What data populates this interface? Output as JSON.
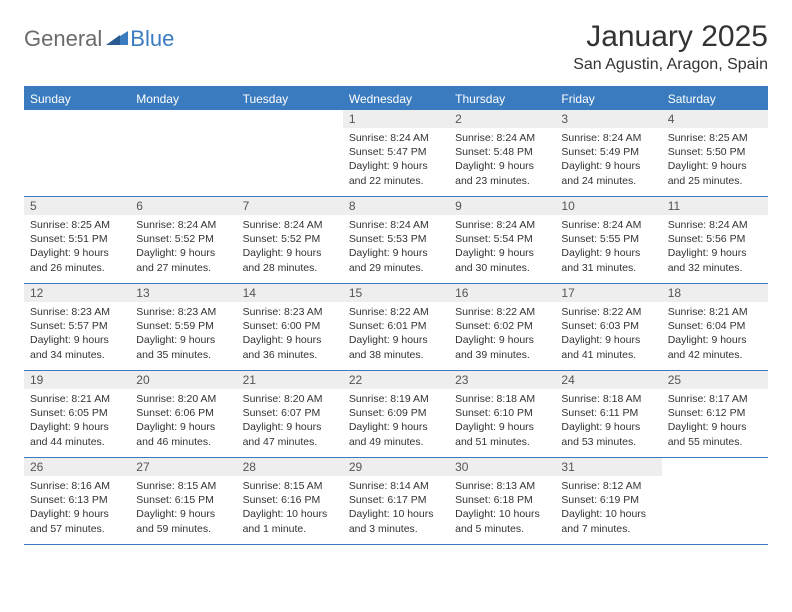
{
  "logo": {
    "general": "General",
    "blue": "Blue"
  },
  "title": "January 2025",
  "location": "San Agustin, Aragon, Spain",
  "colors": {
    "accent": "#3a7bbf",
    "header_text": "#ffffff",
    "day_number_bg": "#eeeeee",
    "body_text": "#333333",
    "logo_gray": "#6b6b6b"
  },
  "day_headers": [
    "Sunday",
    "Monday",
    "Tuesday",
    "Wednesday",
    "Thursday",
    "Friday",
    "Saturday"
  ],
  "weeks": [
    [
      {
        "empty": true
      },
      {
        "empty": true
      },
      {
        "empty": true
      },
      {
        "num": "1",
        "sunrise": "8:24 AM",
        "sunset": "5:47 PM",
        "daylight": "9 hours and 22 minutes."
      },
      {
        "num": "2",
        "sunrise": "8:24 AM",
        "sunset": "5:48 PM",
        "daylight": "9 hours and 23 minutes."
      },
      {
        "num": "3",
        "sunrise": "8:24 AM",
        "sunset": "5:49 PM",
        "daylight": "9 hours and 24 minutes."
      },
      {
        "num": "4",
        "sunrise": "8:25 AM",
        "sunset": "5:50 PM",
        "daylight": "9 hours and 25 minutes."
      }
    ],
    [
      {
        "num": "5",
        "sunrise": "8:25 AM",
        "sunset": "5:51 PM",
        "daylight": "9 hours and 26 minutes."
      },
      {
        "num": "6",
        "sunrise": "8:24 AM",
        "sunset": "5:52 PM",
        "daylight": "9 hours and 27 minutes."
      },
      {
        "num": "7",
        "sunrise": "8:24 AM",
        "sunset": "5:52 PM",
        "daylight": "9 hours and 28 minutes."
      },
      {
        "num": "8",
        "sunrise": "8:24 AM",
        "sunset": "5:53 PM",
        "daylight": "9 hours and 29 minutes."
      },
      {
        "num": "9",
        "sunrise": "8:24 AM",
        "sunset": "5:54 PM",
        "daylight": "9 hours and 30 minutes."
      },
      {
        "num": "10",
        "sunrise": "8:24 AM",
        "sunset": "5:55 PM",
        "daylight": "9 hours and 31 minutes."
      },
      {
        "num": "11",
        "sunrise": "8:24 AM",
        "sunset": "5:56 PM",
        "daylight": "9 hours and 32 minutes."
      }
    ],
    [
      {
        "num": "12",
        "sunrise": "8:23 AM",
        "sunset": "5:57 PM",
        "daylight": "9 hours and 34 minutes."
      },
      {
        "num": "13",
        "sunrise": "8:23 AM",
        "sunset": "5:59 PM",
        "daylight": "9 hours and 35 minutes."
      },
      {
        "num": "14",
        "sunrise": "8:23 AM",
        "sunset": "6:00 PM",
        "daylight": "9 hours and 36 minutes."
      },
      {
        "num": "15",
        "sunrise": "8:22 AM",
        "sunset": "6:01 PM",
        "daylight": "9 hours and 38 minutes."
      },
      {
        "num": "16",
        "sunrise": "8:22 AM",
        "sunset": "6:02 PM",
        "daylight": "9 hours and 39 minutes."
      },
      {
        "num": "17",
        "sunrise": "8:22 AM",
        "sunset": "6:03 PM",
        "daylight": "9 hours and 41 minutes."
      },
      {
        "num": "18",
        "sunrise": "8:21 AM",
        "sunset": "6:04 PM",
        "daylight": "9 hours and 42 minutes."
      }
    ],
    [
      {
        "num": "19",
        "sunrise": "8:21 AM",
        "sunset": "6:05 PM",
        "daylight": "9 hours and 44 minutes."
      },
      {
        "num": "20",
        "sunrise": "8:20 AM",
        "sunset": "6:06 PM",
        "daylight": "9 hours and 46 minutes."
      },
      {
        "num": "21",
        "sunrise": "8:20 AM",
        "sunset": "6:07 PM",
        "daylight": "9 hours and 47 minutes."
      },
      {
        "num": "22",
        "sunrise": "8:19 AM",
        "sunset": "6:09 PM",
        "daylight": "9 hours and 49 minutes."
      },
      {
        "num": "23",
        "sunrise": "8:18 AM",
        "sunset": "6:10 PM",
        "daylight": "9 hours and 51 minutes."
      },
      {
        "num": "24",
        "sunrise": "8:18 AM",
        "sunset": "6:11 PM",
        "daylight": "9 hours and 53 minutes."
      },
      {
        "num": "25",
        "sunrise": "8:17 AM",
        "sunset": "6:12 PM",
        "daylight": "9 hours and 55 minutes."
      }
    ],
    [
      {
        "num": "26",
        "sunrise": "8:16 AM",
        "sunset": "6:13 PM",
        "daylight": "9 hours and 57 minutes."
      },
      {
        "num": "27",
        "sunrise": "8:15 AM",
        "sunset": "6:15 PM",
        "daylight": "9 hours and 59 minutes."
      },
      {
        "num": "28",
        "sunrise": "8:15 AM",
        "sunset": "6:16 PM",
        "daylight": "10 hours and 1 minute."
      },
      {
        "num": "29",
        "sunrise": "8:14 AM",
        "sunset": "6:17 PM",
        "daylight": "10 hours and 3 minutes."
      },
      {
        "num": "30",
        "sunrise": "8:13 AM",
        "sunset": "6:18 PM",
        "daylight": "10 hours and 5 minutes."
      },
      {
        "num": "31",
        "sunrise": "8:12 AM",
        "sunset": "6:19 PM",
        "daylight": "10 hours and 7 minutes."
      },
      {
        "empty": true
      }
    ]
  ],
  "labels": {
    "sunrise": "Sunrise: ",
    "sunset": "Sunset: ",
    "daylight": "Daylight: "
  }
}
